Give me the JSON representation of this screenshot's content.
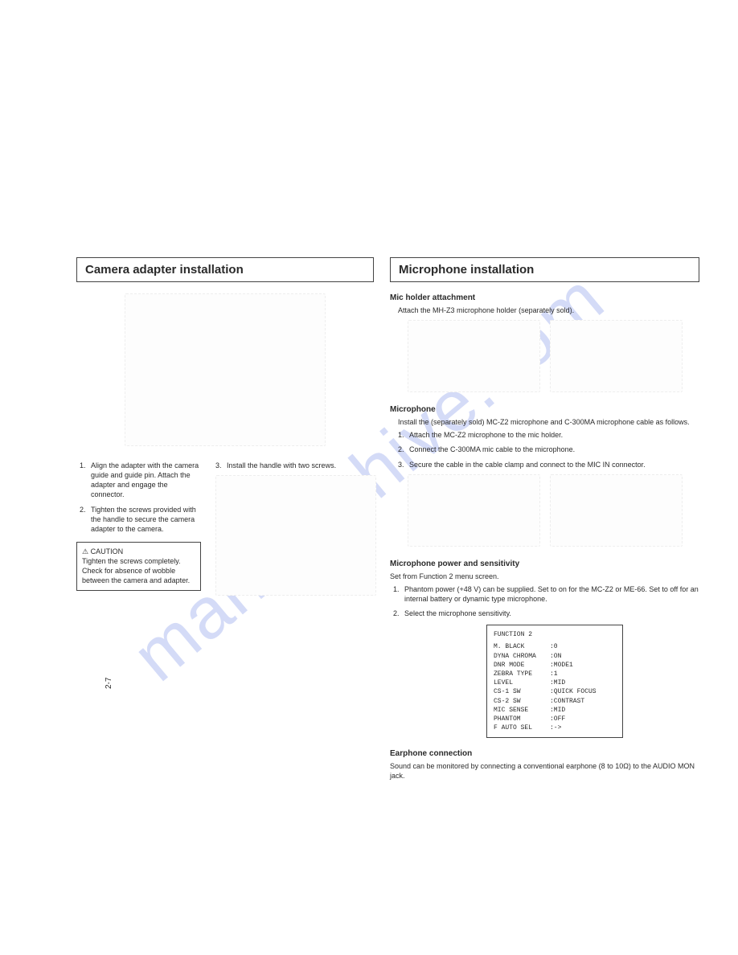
{
  "watermark": "manualshive.com",
  "page_number": "2-7",
  "left": {
    "title": "Camera adapter installation",
    "steps": [
      "Align the adapter with the camera guide and guide pin.   Attach the adapter and engage the connector.",
      "Tighten the screws provided with the handle to secure the camera adapter to the camera."
    ],
    "step3": "Install the handle with two screws.",
    "caution": {
      "label": "CAUTION",
      "text": "Tighten the screws completely.   Check for absence of wobble between the camera and adapter."
    }
  },
  "right": {
    "title": "Microphone installation",
    "mic_holder": {
      "head": "Mic holder attachment",
      "text": "Attach the MH-Z3 microphone holder (separately sold)."
    },
    "microphone": {
      "head": "Microphone",
      "intro": "Install the (separately sold) MC-Z2 microphone and C-300MA microphone cable as follows.",
      "steps": [
        "Attach the MC-Z2 microphone to the mic holder.",
        "Connect the C-300MA mic cable to the microphone.",
        "Secure the cable in the cable clamp and connect to the MIC IN connector."
      ]
    },
    "power": {
      "head": "Microphone power and sensitivity",
      "intro": "Set from Function 2 menu screen.",
      "steps": [
        "Phantom power (+48 V) can be supplied.   Set to on for the MC-Z2 or ME-66.   Set to off for an internal battery or dynamic type microphone.",
        "Select the microphone sensitivity."
      ]
    },
    "menu": {
      "title": "FUNCTION 2",
      "rows": [
        {
          "k": "M. BLACK",
          "v": ":0"
        },
        {
          "k": "DYNA CHROMA",
          "v": ":ON"
        },
        {
          "k": "DNR MODE",
          "v": ":MODE1"
        },
        {
          "k": "ZEBRA TYPE",
          "v": ":1"
        },
        {
          "k": "     LEVEL",
          "v": ":MID"
        },
        {
          "k": "CS-1 SW",
          "v": ":QUICK FOCUS"
        },
        {
          "k": "CS-2 SW",
          "v": ":CONTRAST"
        },
        {
          "k": "MIC SENSE",
          "v": ":MID"
        },
        {
          "k": "PHANTOM",
          "v": ":OFF"
        },
        {
          "k": "F AUTO SEL",
          "v": ":->"
        }
      ]
    },
    "earphone": {
      "head": "Earphone connection",
      "text": "Sound can be monitored by connecting a conventional earphone (8 to 10Ω) to the AUDIO MON jack."
    }
  }
}
